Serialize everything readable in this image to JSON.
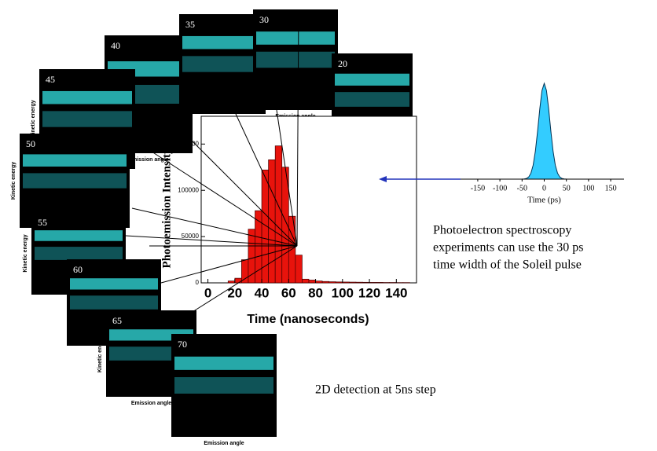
{
  "chart_data": [
    {
      "type": "histogram",
      "title": null,
      "x_label": "Time (nanoseconds)",
      "y_label": "Photoemission Intensity",
      "bins": [
        15,
        20,
        25,
        30,
        35,
        40,
        45,
        50,
        55,
        60,
        65,
        70,
        75,
        80,
        85,
        90,
        95,
        100,
        105,
        110,
        115,
        120,
        125,
        130,
        135,
        140,
        145,
        150
      ],
      "values": [
        2000,
        5000,
        25000,
        58000,
        78000,
        122000,
        133000,
        148000,
        125000,
        72000,
        30000,
        4000,
        3000,
        2000,
        1500,
        1200,
        1000,
        900,
        800,
        700,
        600,
        500,
        500,
        400,
        400,
        300,
        300
      ],
      "color": "#e8130c",
      "xlim": [
        -5,
        155
      ],
      "xticks": [
        0,
        20,
        40,
        60,
        80,
        100,
        120,
        140
      ],
      "ylim": [
        0,
        180000
      ],
      "yticks": [
        0,
        50000,
        100000,
        150000
      ]
    },
    {
      "type": "area",
      "x_label": "Time (ps)",
      "x": [
        -150,
        -50,
        -45,
        -40,
        -35,
        -30,
        -25,
        -20,
        -15,
        -10,
        -5,
        0,
        5,
        10,
        15,
        20,
        25,
        30,
        35,
        40,
        45,
        50,
        150
      ],
      "values": [
        0,
        0.001,
        0.002,
        0.007,
        0.023,
        0.063,
        0.146,
        0.292,
        0.5,
        0.735,
        0.926,
        1,
        0.926,
        0.735,
        0.5,
        0.292,
        0.146,
        0.063,
        0.023,
        0.007,
        0.002,
        0.001,
        0
      ],
      "color": "#33ccff",
      "xlim": [
        -180,
        180
      ],
      "xticks": [
        -150,
        -100,
        -50,
        0,
        50,
        100,
        150
      ],
      "ylim": [
        0,
        1.05
      ]
    }
  ],
  "panels": [
    {
      "label": "40",
      "x_label": "Emission angle"
    },
    {
      "label": "35",
      "x_label": "Emission angle"
    },
    {
      "label": "30",
      "x_label": "Emission angle"
    },
    {
      "label": "20",
      "x_label": "Emission angle"
    },
    {
      "label": "45",
      "y_label": "Kinetic energy"
    },
    {
      "label": "50",
      "y_label": "Kinetic energy"
    },
    {
      "label": "55",
      "y_label": "Kinetic energy"
    },
    {
      "label": "60"
    },
    {
      "label": "65",
      "x_label": "Emission angle",
      "y_label": "Kinetic energy"
    },
    {
      "label": "70",
      "x_label": "Emission angle"
    }
  ],
  "captions": {
    "pulse": [
      "Photoelectron spectroscopy",
      "experiments can use the 30 ps",
      "time width of the Soleil pulse"
    ],
    "detection": "2D detection at 5ns step"
  }
}
